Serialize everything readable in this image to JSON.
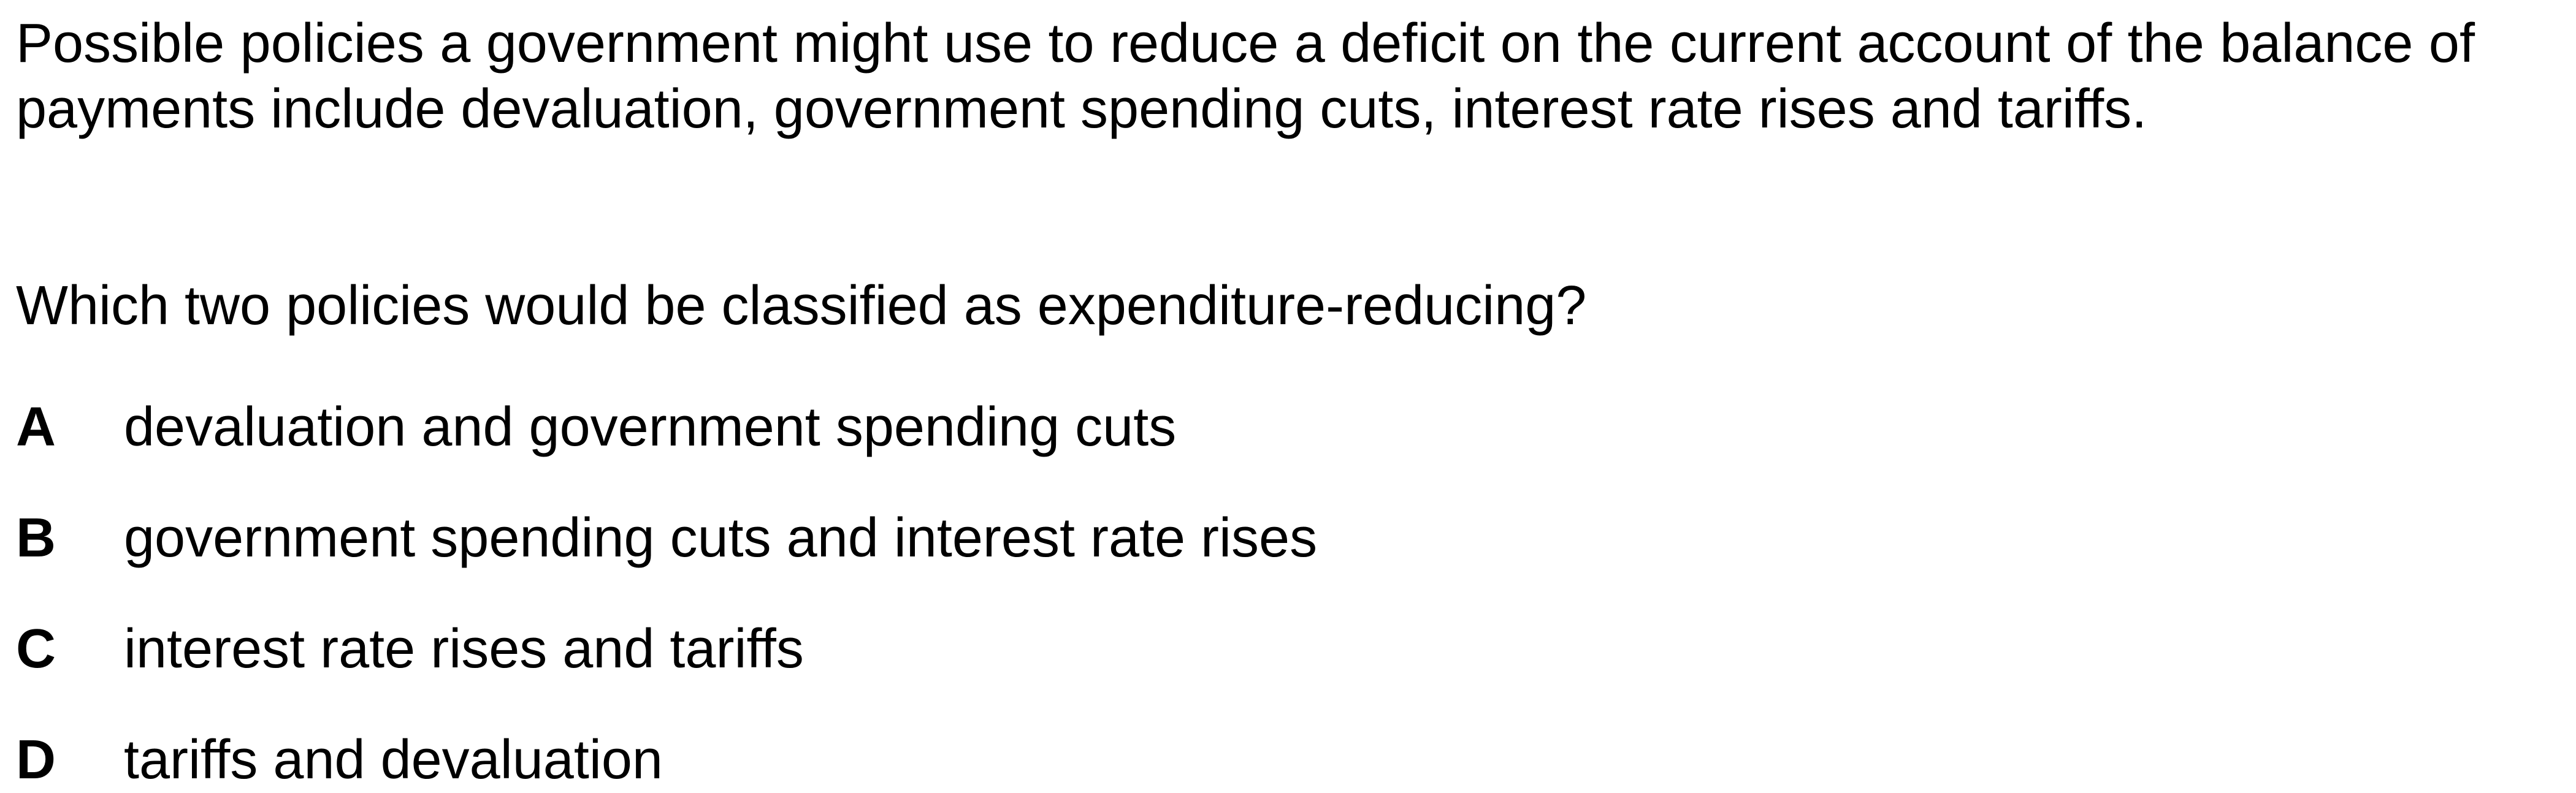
{
  "question": {
    "stem": "Possible policies a government might use to reduce a deficit on the current account of the balance of payments include devaluation, government spending cuts, interest rate rises and tariffs.",
    "prompt": "Which two policies would be classified as expenditure-reducing?",
    "options": [
      {
        "letter": "A",
        "text": "devaluation and government spending cuts"
      },
      {
        "letter": "B",
        "text": "government spending cuts and interest rate rises"
      },
      {
        "letter": "C",
        "text": "interest rate rises and tariffs"
      },
      {
        "letter": "D",
        "text": "tariffs and devaluation"
      }
    ]
  }
}
